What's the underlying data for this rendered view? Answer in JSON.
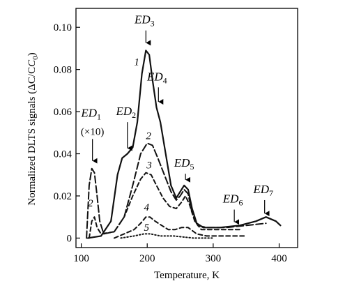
{
  "chart_data": {
    "type": "line",
    "xlabel": "Temperature, K",
    "ylabel": "Normalized DLTS signals (ΔC/C",
    "ylabel_sub": "0",
    "ylabel_end": ")",
    "xlim": [
      92,
      428
    ],
    "ylim": [
      -0.0045,
      0.109
    ],
    "x_ticks": [
      100,
      200,
      300,
      400
    ],
    "y_ticks": [
      0,
      0.02,
      0.04,
      0.06,
      0.08,
      0.1
    ],
    "y_tick_labels": [
      "0",
      "0.02",
      "0.04",
      "0.06",
      "0.08",
      "0.10"
    ],
    "grid": false,
    "series": [
      {
        "name": "1",
        "style": "solid",
        "points": [
          [
            110,
            0.0
          ],
          [
            130,
            0.001
          ],
          [
            145,
            0.008
          ],
          [
            155,
            0.03
          ],
          [
            162,
            0.038
          ],
          [
            170,
            0.04
          ],
          [
            178,
            0.043
          ],
          [
            185,
            0.055
          ],
          [
            192,
            0.078
          ],
          [
            198,
            0.089
          ],
          [
            203,
            0.087
          ],
          [
            208,
            0.075
          ],
          [
            214,
            0.062
          ],
          [
            220,
            0.055
          ],
          [
            228,
            0.04
          ],
          [
            236,
            0.025
          ],
          [
            244,
            0.019
          ],
          [
            250,
            0.022
          ],
          [
            256,
            0.025
          ],
          [
            262,
            0.023
          ],
          [
            268,
            0.014
          ],
          [
            275,
            0.007
          ],
          [
            285,
            0.005
          ],
          [
            310,
            0.005
          ],
          [
            340,
            0.006
          ],
          [
            365,
            0.008
          ],
          [
            380,
            0.01
          ],
          [
            395,
            0.008
          ],
          [
            402,
            0.006
          ]
        ]
      },
      {
        "name": "2",
        "style": "long-dash",
        "points": [
          [
            108,
            0.0
          ],
          [
            112,
            0.025
          ],
          [
            116,
            0.033
          ],
          [
            120,
            0.031
          ],
          [
            124,
            0.02
          ],
          [
            128,
            0.008
          ],
          [
            134,
            0.002
          ],
          [
            150,
            0.003
          ],
          [
            165,
            0.01
          ],
          [
            178,
            0.025
          ],
          [
            190,
            0.04
          ],
          [
            200,
            0.045
          ],
          [
            208,
            0.044
          ],
          [
            216,
            0.038
          ],
          [
            226,
            0.03
          ],
          [
            236,
            0.022
          ],
          [
            244,
            0.018
          ],
          [
            250,
            0.02
          ],
          [
            256,
            0.023
          ],
          [
            262,
            0.021
          ],
          [
            268,
            0.012
          ],
          [
            276,
            0.006
          ],
          [
            290,
            0.005
          ],
          [
            320,
            0.005
          ],
          [
            350,
            0.006
          ],
          [
            380,
            0.007
          ]
        ]
      },
      {
        "name": "3",
        "style": "dash",
        "points": [
          [
            112,
            0.0
          ],
          [
            116,
            0.008
          ],
          [
            120,
            0.01
          ],
          [
            124,
            0.005
          ],
          [
            130,
            0.002
          ],
          [
            150,
            0.003
          ],
          [
            165,
            0.01
          ],
          [
            178,
            0.02
          ],
          [
            190,
            0.028
          ],
          [
            198,
            0.031
          ],
          [
            206,
            0.03
          ],
          [
            214,
            0.025
          ],
          [
            224,
            0.019
          ],
          [
            234,
            0.015
          ],
          [
            244,
            0.014
          ],
          [
            252,
            0.017
          ],
          [
            258,
            0.02
          ],
          [
            264,
            0.016
          ],
          [
            272,
            0.008
          ],
          [
            282,
            0.004
          ],
          [
            310,
            0.004
          ],
          [
            340,
            0.004
          ]
        ]
      },
      {
        "name": "4",
        "style": "dash",
        "points": [
          [
            150,
            0.0
          ],
          [
            165,
            0.002
          ],
          [
            180,
            0.004
          ],
          [
            190,
            0.007
          ],
          [
            198,
            0.01
          ],
          [
            204,
            0.01
          ],
          [
            212,
            0.008
          ],
          [
            222,
            0.006
          ],
          [
            232,
            0.004
          ],
          [
            242,
            0.004
          ],
          [
            252,
            0.005
          ],
          [
            262,
            0.005
          ],
          [
            275,
            0.002
          ],
          [
            290,
            0.001
          ],
          [
            320,
            0.001
          ],
          [
            350,
            0.001
          ]
        ]
      },
      {
        "name": "5",
        "style": "dot",
        "points": [
          [
            160,
            0.0
          ],
          [
            180,
            0.001
          ],
          [
            195,
            0.002
          ],
          [
            205,
            0.002
          ],
          [
            220,
            0.001
          ],
          [
            240,
            0.001
          ],
          [
            270,
            0.0
          ],
          [
            300,
            0.0
          ]
        ]
      }
    ],
    "curve_labels": [
      {
        "text": "1",
        "x": 184,
        "y": 0.082
      },
      {
        "text": "2",
        "x": 202,
        "y": 0.047
      },
      {
        "text": "3",
        "x": 203,
        "y": 0.033
      },
      {
        "text": "4",
        "x": 199,
        "y": 0.013
      },
      {
        "text": "5",
        "x": 199,
        "y": 0.0035
      },
      {
        "text": "2",
        "x": 114,
        "y": 0.015
      }
    ],
    "annotations": [
      {
        "name": "ED1",
        "label": "ED",
        "sub": "1",
        "extra": "(×10)",
        "x": 117,
        "y_arrow_end": 0.036,
        "y_text": 0.049
      },
      {
        "name": "ED2",
        "label": "ED",
        "sub": "2",
        "x": 170,
        "y_arrow_end": 0.042,
        "y_text": 0.057
      },
      {
        "name": "ED3",
        "label": "ED",
        "sub": "3",
        "x": 198,
        "y_arrow_end": 0.092,
        "y_text": 0.1005
      },
      {
        "name": "ED4",
        "label": "ED",
        "sub": "4",
        "x": 217,
        "y_arrow_end": 0.064,
        "y_text": 0.0735
      },
      {
        "name": "ED5",
        "label": "ED",
        "sub": "5",
        "x": 258,
        "y_arrow_end": 0.027,
        "y_text": 0.0325
      },
      {
        "name": "ED6",
        "label": "ED",
        "sub": "6",
        "x": 332,
        "y_arrow_end": 0.007,
        "y_text": 0.0155
      },
      {
        "name": "ED7",
        "label": "ED",
        "sub": "7",
        "x": 378,
        "y_arrow_end": 0.011,
        "y_text": 0.02
      }
    ]
  }
}
